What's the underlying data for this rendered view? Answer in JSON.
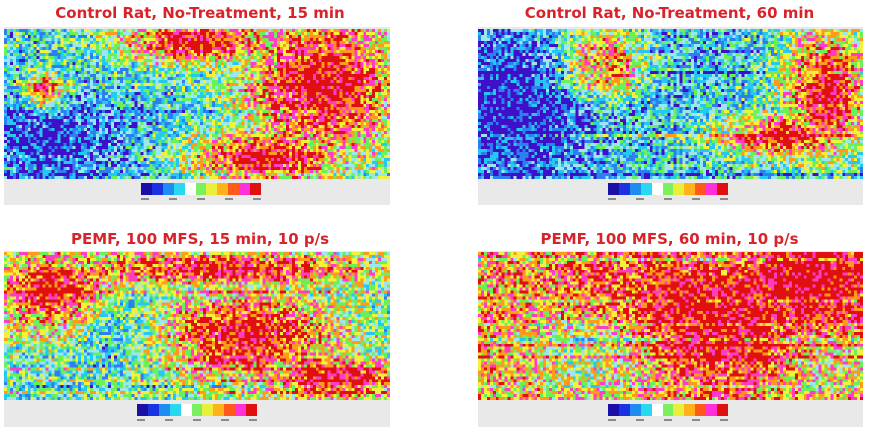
{
  "panels": [
    {
      "title": "Control Rat, No-Treatment, 15 min",
      "palette": [
        "#3f10c8",
        "#2d7ef0",
        "#25c8f0",
        "#9ce6f0",
        "#6cf05a",
        "#f2f23a",
        "#ff9a1a",
        "#ff3cc8",
        "#e01010"
      ],
      "dominant": "cyan-green with red region upper right"
    },
    {
      "title": "Control Rat, No-Treatment, 60 min",
      "palette": [
        "#3f10c8",
        "#2d7ef0",
        "#25c8f0",
        "#9ce6f0",
        "#6cf05a",
        "#f2f23a",
        "#ff9a1a",
        "#ff3cc8",
        "#e01010"
      ],
      "dominant": "blue-cyan left, red right"
    },
    {
      "title": "PEMF, 100 MFS, 15 min, 10 p/s",
      "palette": [
        "#3f10c8",
        "#2d7ef0",
        "#25c8f0",
        "#9ce6f0",
        "#6cf05a",
        "#f2f23a",
        "#ff9a1a",
        "#ff3cc8",
        "#e01010"
      ],
      "dominant": "mixed red and green-cyan"
    },
    {
      "title": "PEMF, 100 MFS, 60 min, 10 p/s",
      "palette": [
        "#3f10c8",
        "#2d7ef0",
        "#25c8f0",
        "#9ce6f0",
        "#6cf05a",
        "#f2f23a",
        "#ff9a1a",
        "#ff3cc8",
        "#e01010"
      ],
      "dominant": "mostly red"
    }
  ],
  "colorbar": {
    "colors": [
      "#1a10a8",
      "#1a32e0",
      "#1e8cf0",
      "#27d8f0",
      "#ffffff",
      "#7af060",
      "#e8f03a",
      "#ffb21a",
      "#ff5a1a",
      "#ff30d8",
      "#e01010"
    ]
  },
  "title_color": "#d8232a"
}
